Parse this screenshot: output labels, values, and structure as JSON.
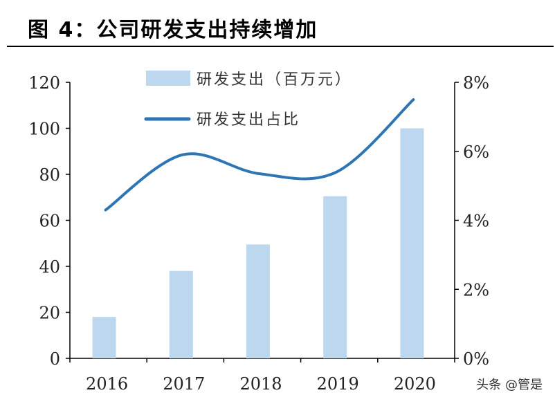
{
  "title": "图 4：公司研发支出持续增加",
  "watermark": "头条 @管是",
  "colors": {
    "bar": "#bdd7ee",
    "line": "#2e75b6"
  },
  "chart_data": {
    "type": "bar+line",
    "categories": [
      "2016",
      "2017",
      "2018",
      "2019",
      "2020"
    ],
    "series": [
      {
        "name": "研发支出（百万元）",
        "type": "bar",
        "axis": "left",
        "values": [
          18,
          38,
          49.5,
          70.5,
          100
        ]
      },
      {
        "name": "研发支出占比",
        "type": "line",
        "axis": "right",
        "smooth": true,
        "values": [
          4.3,
          5.9,
          5.35,
          5.4,
          7.5
        ]
      }
    ],
    "left_axis": {
      "range": [
        0,
        120
      ],
      "ticks": [
        0,
        20,
        40,
        60,
        80,
        100,
        120
      ],
      "tick_labels": [
        "0",
        "20",
        "40",
        "60",
        "80",
        "100",
        "120"
      ]
    },
    "right_axis": {
      "range": [
        0,
        8
      ],
      "ticks": [
        0,
        2,
        4,
        6,
        8
      ],
      "tick_labels": [
        "0%",
        "2%",
        "4%",
        "6%",
        "8%"
      ]
    },
    "legend": [
      "研发支出（百万元）",
      "研发支出占比"
    ],
    "legend_placement": "top-center",
    "grid": false
  }
}
